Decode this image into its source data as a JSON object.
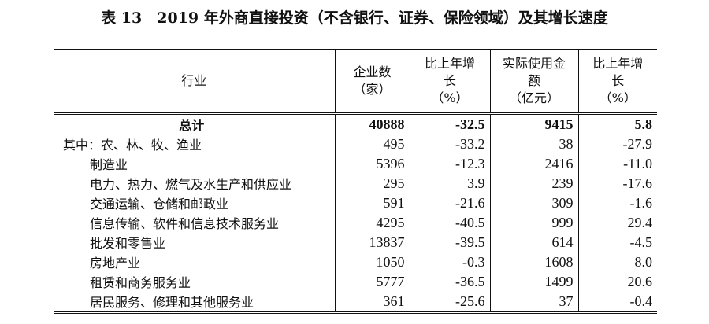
{
  "title": "表 13　2019 年外商直接投资（不含银行、证券、保险领域）及其增长速度",
  "headers": {
    "industry": "行业",
    "firms": [
      "企业数",
      "（家）"
    ],
    "firms_growth": [
      "比上年增",
      "长",
      "（%）"
    ],
    "amount": [
      "实际使用金",
      "额",
      "（亿元）"
    ],
    "amount_growth": [
      "比上年增",
      "长",
      "（%）"
    ]
  },
  "rows": [
    {
      "name": "总计",
      "firms": "40888",
      "firms_growth": "-32.5",
      "amount": "9415",
      "amount_growth": "5.8"
    },
    {
      "name": "其中：农、林、牧、渔业",
      "firms": "495",
      "firms_growth": "-33.2",
      "amount": "38",
      "amount_growth": "-27.9"
    },
    {
      "name": "制造业",
      "firms": "5396",
      "firms_growth": "-12.3",
      "amount": "2416",
      "amount_growth": "-11.0"
    },
    {
      "name": "电力、热力、燃气及水生产和供应业",
      "firms": "295",
      "firms_growth": "3.9",
      "amount": "239",
      "amount_growth": "-17.6"
    },
    {
      "name": "交通运输、仓储和邮政业",
      "firms": "591",
      "firms_growth": "-21.6",
      "amount": "309",
      "amount_growth": "-1.6"
    },
    {
      "name": "信息传输、软件和信息技术服务业",
      "firms": "4295",
      "firms_growth": "-40.5",
      "amount": "999",
      "amount_growth": "29.4"
    },
    {
      "name": "批发和零售业",
      "firms": "13837",
      "firms_growth": "-39.5",
      "amount": "614",
      "amount_growth": "-4.5"
    },
    {
      "name": "房地产业",
      "firms": "1050",
      "firms_growth": "-0.3",
      "amount": "1608",
      "amount_growth": "8.0"
    },
    {
      "name": "租赁和商务服务业",
      "firms": "5777",
      "firms_growth": "-36.5",
      "amount": "1499",
      "amount_growth": "20.6"
    },
    {
      "name": "居民服务、修理和其他服务业",
      "firms": "361",
      "firms_growth": "-25.6",
      "amount": "37",
      "amount_growth": "-0.4"
    }
  ]
}
